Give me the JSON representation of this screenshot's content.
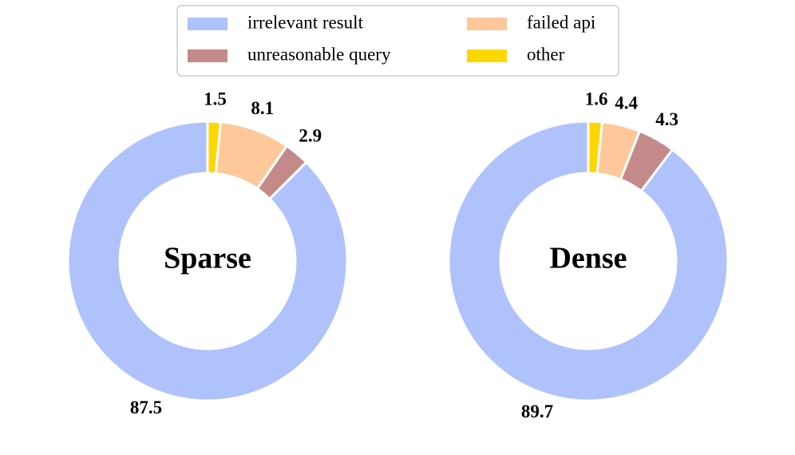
{
  "chart_data": [
    {
      "type": "pie",
      "title": "Sparse",
      "categories": [
        "irrelevant result",
        "unreasonable query",
        "failed api",
        "other"
      ],
      "values": [
        87.5,
        2.9,
        8.1,
        1.5
      ],
      "colors": [
        "#b0c2fb",
        "#c48a8a",
        "#fec89a",
        "#fdd700"
      ]
    },
    {
      "type": "pie",
      "title": "Dense",
      "categories": [
        "irrelevant result",
        "unreasonable query",
        "failed api",
        "other"
      ],
      "values": [
        89.7,
        4.3,
        4.4,
        1.6
      ],
      "colors": [
        "#b0c2fb",
        "#c48a8a",
        "#fec89a",
        "#fdd700"
      ]
    }
  ]
}
